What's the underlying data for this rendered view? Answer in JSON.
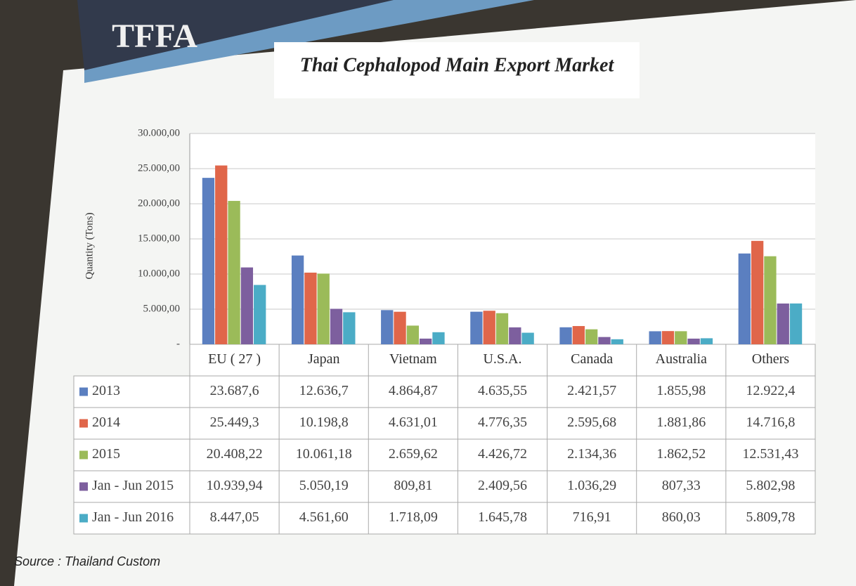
{
  "branding": "TFFA",
  "chart_data": {
    "type": "bar",
    "title": "Thai Cephalopod Main Export Market",
    "y_label": "Quantity (Tons)",
    "source": "Source : Thailand Custom",
    "categories": [
      "EU ( 27 )",
      "Japan",
      "Vietnam",
      "U.S.A.",
      "Canada",
      "Australia",
      "Others"
    ],
    "ylim": [
      0,
      30000
    ],
    "yticks": [
      {
        "value": 0,
        "label": "-"
      },
      {
        "value": 5000,
        "label": "5.000,00"
      },
      {
        "value": 10000,
        "label": "10.000,00"
      },
      {
        "value": 15000,
        "label": "15.000,00"
      },
      {
        "value": 20000,
        "label": "20.000,00"
      },
      {
        "value": 25000,
        "label": "25.000,00"
      },
      {
        "value": 30000,
        "label": "30.000,00"
      }
    ],
    "grid": true,
    "series": [
      {
        "name": "2013",
        "color": "#5b7fc0",
        "values": [
          23687.6,
          12636.7,
          4864.87,
          4635.55,
          2421.57,
          1855.98,
          12922.4
        ],
        "value_labels": [
          "23.687,6",
          "12.636,7",
          "4.864,87",
          "4.635,55",
          "2.421,57",
          "1.855,98",
          "12.922,4"
        ]
      },
      {
        "name": "2014",
        "color": "#e0664a",
        "values": [
          25449.3,
          10198.8,
          4631.01,
          4776.35,
          2595.68,
          1881.86,
          14716.8
        ],
        "value_labels": [
          "25.449,3",
          "10.198,8",
          "4.631,01",
          "4.776,35",
          "2.595,68",
          "1.881,86",
          "14.716,8"
        ]
      },
      {
        "name": "2015",
        "color": "#9bbb59",
        "values": [
          20408.22,
          10061.18,
          2659.62,
          4426.72,
          2134.36,
          1862.52,
          12531.43
        ],
        "value_labels": [
          "20.408,22",
          "10.061,18",
          "2.659,62",
          "4.426,72",
          "2.134,36",
          "1.862,52",
          "12.531,43"
        ]
      },
      {
        "name": "Jan - Jun 2015",
        "color": "#7d5f9e",
        "values": [
          10939.94,
          5050.19,
          809.81,
          2409.56,
          1036.29,
          807.33,
          5802.98
        ],
        "value_labels": [
          "10.939,94",
          "5.050,19",
          "809,81",
          "2.409,56",
          "1.036,29",
          "807,33",
          "5.802,98"
        ]
      },
      {
        "name": "Jan - Jun 2016",
        "color": "#4bacc6",
        "values": [
          8447.05,
          4561.6,
          1718.09,
          1645.78,
          716.91,
          860.03,
          5809.78
        ],
        "value_labels": [
          "8.447,05",
          "4.561,60",
          "1.718,09",
          "1.645,78",
          "716,91",
          "860,03",
          "5.809,78"
        ]
      }
    ]
  }
}
